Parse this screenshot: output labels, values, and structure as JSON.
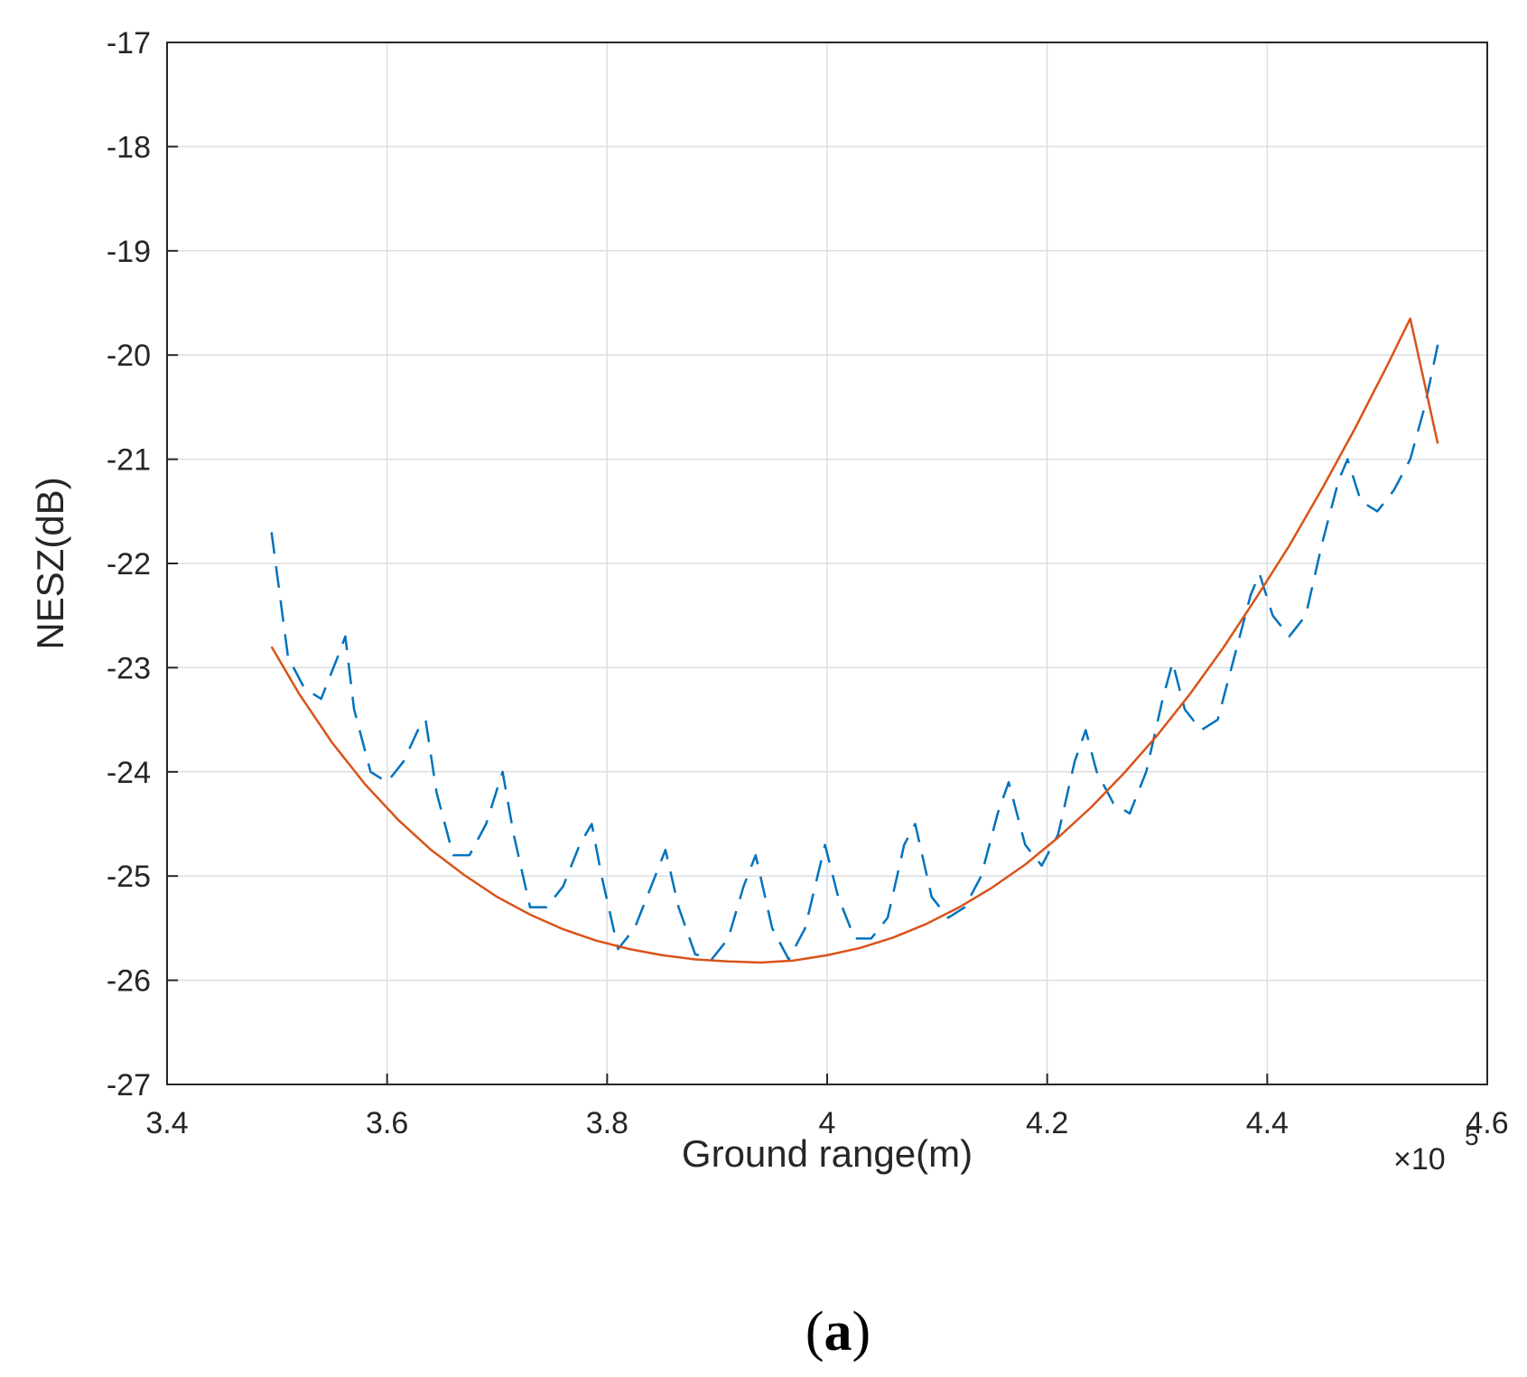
{
  "chart_data": {
    "type": "line",
    "xlabel": "Ground range(m)",
    "ylabel": "NESZ(dB)",
    "x_exponent_label": "×10",
    "x_exponent_power": "5",
    "xlim": [
      340000,
      460000
    ],
    "ylim": [
      -27,
      -17
    ],
    "x_ticks": [
      340000,
      360000,
      380000,
      400000,
      420000,
      440000,
      460000
    ],
    "x_tick_labels": [
      "3.4",
      "3.6",
      "3.8",
      "4",
      "4.2",
      "4.4",
      "4.6"
    ],
    "y_ticks": [
      -17,
      -18,
      -19,
      -20,
      -21,
      -22,
      -23,
      -24,
      -25,
      -26,
      -27
    ],
    "y_tick_labels": [
      "-17",
      "-18",
      "-19",
      "-20",
      "-21",
      "-22",
      "-23",
      "-24",
      "-25",
      "-26",
      "-27"
    ],
    "grid": true,
    "series": [
      {
        "style": "dashed",
        "color": "#0072bd",
        "x": [
          349500,
          351000,
          352500,
          354000,
          355500,
          356200,
          357000,
          358500,
          360000,
          361500,
          362800,
          363500,
          364500,
          366000,
          367500,
          369000,
          370500,
          371500,
          373000,
          374500,
          376000,
          377500,
          378600,
          379500,
          381000,
          382500,
          384000,
          385300,
          386500,
          388000,
          389500,
          391000,
          392400,
          393500,
          395000,
          396500,
          398000,
          399800,
          401000,
          402500,
          404000,
          405500,
          407000,
          408000,
          409500,
          411000,
          412500,
          414000,
          415500,
          416500,
          418000,
          419500,
          421000,
          422500,
          423500,
          424500,
          426000,
          427500,
          429000,
          430500,
          431400,
          432500,
          434000,
          435500,
          437000,
          438500,
          439300,
          440500,
          442000,
          443500,
          445000,
          446500,
          447300,
          448500,
          450000,
          451500,
          453000,
          454300,
          455500
        ],
        "y": [
          -21.7,
          -22.9,
          -23.2,
          -23.3,
          -22.9,
          -22.7,
          -23.4,
          -24.0,
          -24.1,
          -23.9,
          -23.6,
          -23.5,
          -24.2,
          -24.8,
          -24.8,
          -24.5,
          -24.0,
          -24.6,
          -25.3,
          -25.3,
          -25.1,
          -24.7,
          -24.5,
          -25.0,
          -25.7,
          -25.5,
          -25.1,
          -24.75,
          -25.3,
          -25.75,
          -25.8,
          -25.6,
          -25.1,
          -24.8,
          -25.5,
          -25.8,
          -25.5,
          -24.7,
          -25.2,
          -25.6,
          -25.6,
          -25.4,
          -24.7,
          -24.5,
          -25.2,
          -25.4,
          -25.3,
          -25.0,
          -24.4,
          -24.1,
          -24.7,
          -24.9,
          -24.6,
          -23.9,
          -23.6,
          -24.0,
          -24.3,
          -24.4,
          -24.0,
          -23.3,
          -22.95,
          -23.4,
          -23.6,
          -23.5,
          -22.9,
          -22.3,
          -22.1,
          -22.5,
          -22.7,
          -22.5,
          -21.8,
          -21.2,
          -21.0,
          -21.4,
          -21.5,
          -21.3,
          -21.0,
          -20.5,
          -19.9
        ]
      },
      {
        "style": "solid",
        "color": "#d95319",
        "x": [
          349500,
          352000,
          355000,
          358000,
          361000,
          364000,
          367000,
          370000,
          373000,
          376000,
          379000,
          382000,
          385000,
          388000,
          391000,
          394000,
          397000,
          400000,
          403000,
          406000,
          409000,
          412000,
          415000,
          418000,
          421000,
          424000,
          427000,
          430000,
          433000,
          436000,
          439000,
          442000,
          445000,
          448000,
          451000,
          453000,
          455500
        ],
        "y": [
          -22.8,
          -23.25,
          -23.72,
          -24.12,
          -24.46,
          -24.75,
          -24.99,
          -25.2,
          -25.37,
          -25.51,
          -25.62,
          -25.7,
          -25.76,
          -25.8,
          -25.82,
          -25.83,
          -25.81,
          -25.76,
          -25.69,
          -25.59,
          -25.46,
          -25.3,
          -25.11,
          -24.89,
          -24.63,
          -24.34,
          -24.01,
          -23.65,
          -23.25,
          -22.81,
          -22.33,
          -21.83,
          -21.28,
          -20.7,
          -20.08,
          -19.65,
          -20.85
        ]
      }
    ]
  },
  "caption": {
    "open": "(",
    "letter": "a",
    "close": ")"
  }
}
